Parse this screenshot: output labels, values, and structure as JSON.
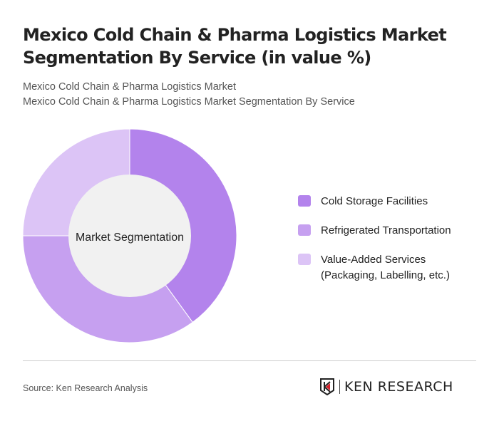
{
  "title": "Mexico Cold Chain & Pharma Logistics Market Segmentation By Service (in value %)",
  "subtitle1": "Mexico Cold Chain & Pharma Logistics Market",
  "subtitle2": "Mexico Cold Chain & Pharma Logistics Market Segmentation By Service",
  "chart_data": {
    "type": "pie",
    "donut": true,
    "center_label": "Market Segmentation",
    "categories": [
      "Cold Storage Facilities",
      "Refrigerated Transportation",
      "Value-Added Services (Packaging, Labelling, etc.)"
    ],
    "values": [
      40,
      35,
      25
    ],
    "colors": [
      "#b383ec",
      "#c6a0f0",
      "#dcc4f6"
    ],
    "legend": "right"
  },
  "legend": [
    {
      "label": "Cold Storage Facilities",
      "color": "#b383ec"
    },
    {
      "label": "Refrigerated Transportation",
      "color": "#c6a0f0"
    },
    {
      "label": "Value-Added Services (Packaging, Labelling, etc.)",
      "color": "#dcc4f6"
    }
  ],
  "source": "Source: Ken Research Analysis",
  "logo_text": "KEN RESEARCH"
}
